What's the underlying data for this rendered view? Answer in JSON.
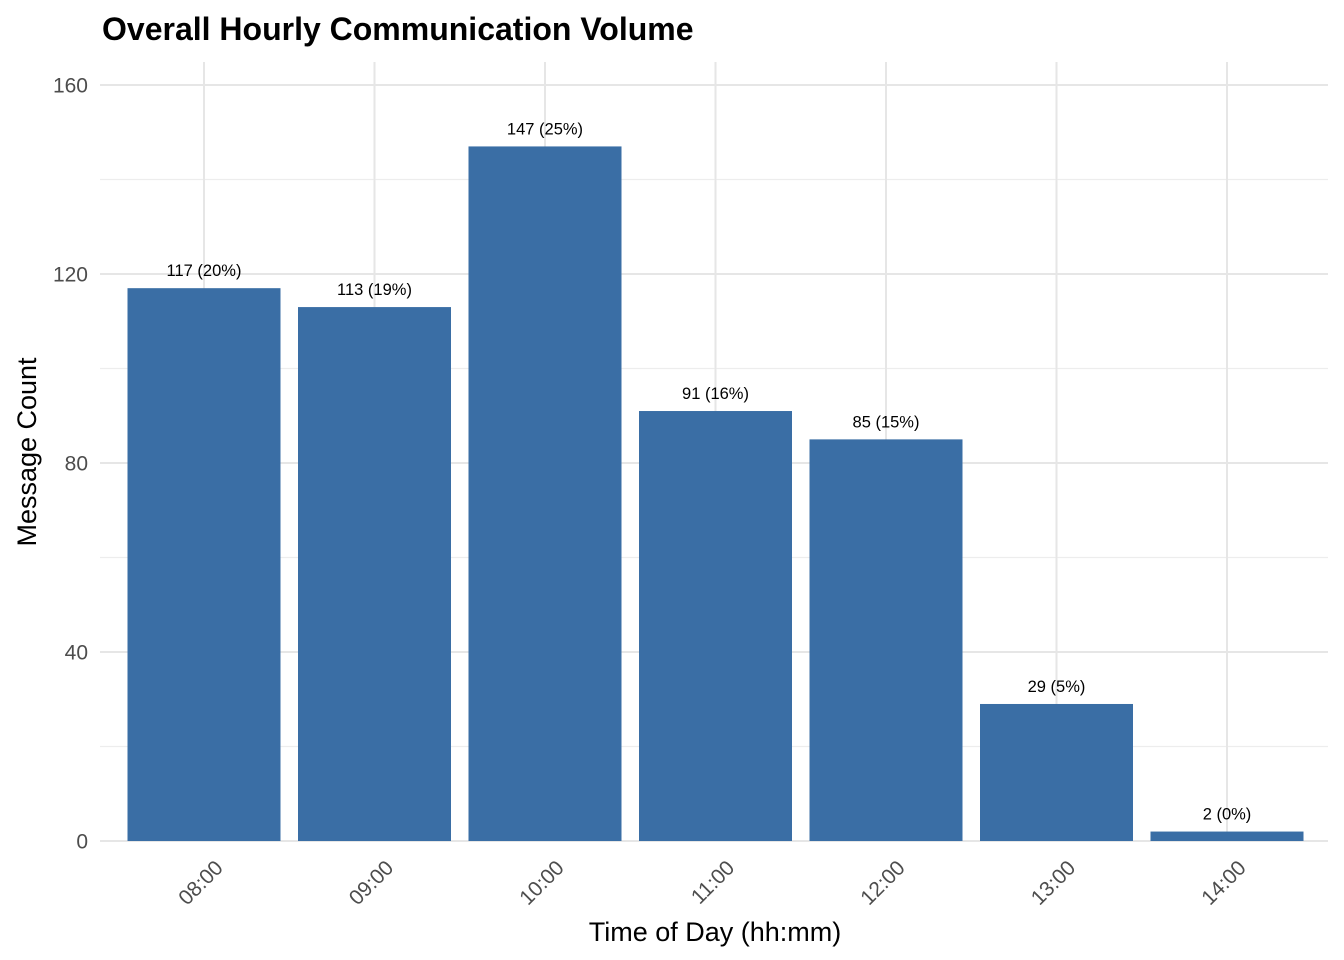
{
  "chart_data": {
    "type": "bar",
    "title": "Overall Hourly Communication Volume",
    "xlabel": "Time of Day (hh:mm)",
    "ylabel": "Message Count",
    "categories": [
      "08:00",
      "09:00",
      "10:00",
      "11:00",
      "12:00",
      "13:00",
      "14:00"
    ],
    "values": [
      117,
      113,
      147,
      91,
      85,
      29,
      2
    ],
    "data_labels": [
      "117 (20%)",
      "113 (19%)",
      "147 (25%)",
      "91 (16%)",
      "85 (15%)",
      "29 (5%)",
      "2 (0%)"
    ],
    "ylim": [
      0,
      160
    ],
    "yticks": [
      0,
      40,
      80,
      120,
      160
    ],
    "grid": true,
    "bar_color": "#3A6EA5",
    "legend": "none"
  }
}
